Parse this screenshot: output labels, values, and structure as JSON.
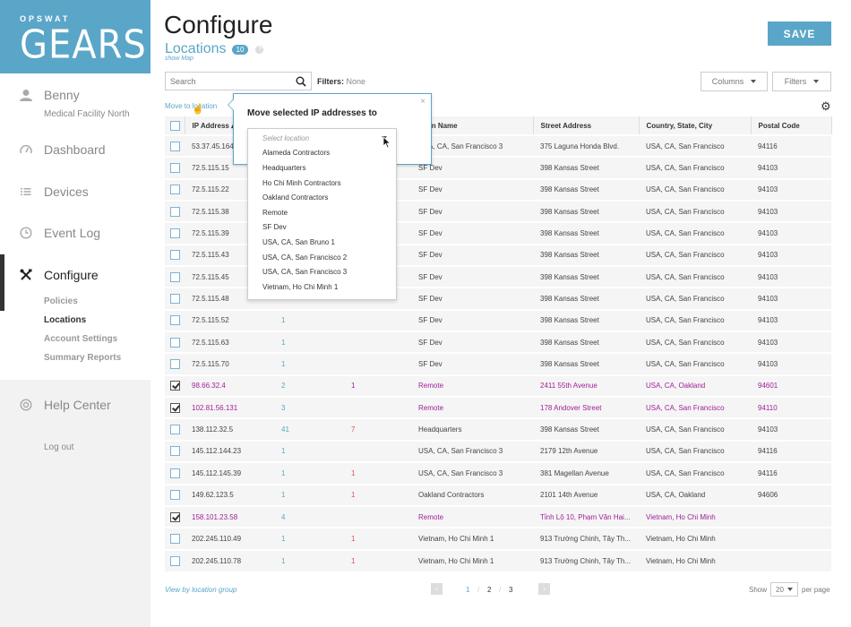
{
  "brand": {
    "top": "OPSWAT",
    "name": "GEARS"
  },
  "sidebar": {
    "user": {
      "name": "Benny",
      "org": "Medical Facility North"
    },
    "items": [
      {
        "label": "Dashboard"
      },
      {
        "label": "Devices"
      },
      {
        "label": "Event Log"
      },
      {
        "label": "Configure"
      },
      {
        "label": "Help Center"
      }
    ],
    "sub_items": [
      "Policies",
      "Locations",
      "Account Settings",
      "Summary Reports"
    ],
    "logout": "Log out"
  },
  "header": {
    "title": "Configure",
    "save_label": "SAVE"
  },
  "locations": {
    "title": "Locations",
    "count": "10",
    "help": "?",
    "show_map": "show Map"
  },
  "toolbar": {
    "search_placeholder": "Search",
    "filters_label": "Filters:",
    "filters_value": "None",
    "columns_btn": "Columns",
    "filters_btn": "Filters",
    "move_link": "Move to location"
  },
  "popover": {
    "title": "Move selected IP addresses to",
    "close": "×",
    "placeholder": "Select location",
    "options": [
      "Alameda Contractors",
      "Headquarters",
      "Ho Chi Minh Contractors",
      "Oakland Contractors",
      "Remote",
      "SF Dev",
      "USA, CA, San Bruno 1",
      "USA, CA, San Francisco 2",
      "USA, CA, San Francisco 3",
      "Vietnam, Ho Chi Minh 1"
    ]
  },
  "table": {
    "headers": [
      "IP Address",
      "",
      "",
      "Location Name",
      "Street Address",
      "Country, State, City",
      "Postal Code"
    ],
    "header_visible_name": "ation Name",
    "rows": [
      {
        "checked": false,
        "ip": "53.37.45.164",
        "c1": "",
        "c2": "",
        "loc": "USA, CA, San Francisco 3",
        "street": "375 Laguna Honda Blvd.",
        "city": "USA, CA, San Francisco",
        "zip": "94116"
      },
      {
        "checked": false,
        "ip": "72.5.115.15",
        "c1": "",
        "c2": "",
        "loc": "SF Dev",
        "street": "398 Kansas Street",
        "city": "USA, CA, San Francisco",
        "zip": "94103"
      },
      {
        "checked": false,
        "ip": "72.5.115.22",
        "c1": "",
        "c2": "",
        "loc": "SF Dev",
        "street": "398 Kansas Street",
        "city": "USA, CA, San Francisco",
        "zip": "94103"
      },
      {
        "checked": false,
        "ip": "72.5.115.38",
        "c1": "",
        "c2": "",
        "loc": "SF Dev",
        "street": "398 Kansas Street",
        "city": "USA, CA, San Francisco",
        "zip": "94103"
      },
      {
        "checked": false,
        "ip": "72.5.115.39",
        "c1": "",
        "c2": "",
        "loc": "SF Dev",
        "street": "398 Kansas Street",
        "city": "USA, CA, San Francisco",
        "zip": "94103"
      },
      {
        "checked": false,
        "ip": "72.5.115.43",
        "c1": "",
        "c2": "",
        "loc": "SF Dev",
        "street": "398 Kansas Street",
        "city": "USA, CA, San Francisco",
        "zip": "94103"
      },
      {
        "checked": false,
        "ip": "72.5.115.45",
        "c1": "",
        "c2": "",
        "loc": "SF Dev",
        "street": "398 Kansas Street",
        "city": "USA, CA, San Francisco",
        "zip": "94103"
      },
      {
        "checked": false,
        "ip": "72.5.115.48",
        "c1": "",
        "c2": "",
        "loc": "SF Dev",
        "street": "398 Kansas Street",
        "city": "USA, CA, San Francisco",
        "zip": "94103"
      },
      {
        "checked": false,
        "ip": "72.5.115.52",
        "c1": "1",
        "c2": "",
        "loc": "SF Dev",
        "street": "398 Kansas Street",
        "city": "USA, CA, San Francisco",
        "zip": "94103"
      },
      {
        "checked": false,
        "ip": "72.5.115.63",
        "c1": "1",
        "c2": "",
        "loc": "SF Dev",
        "street": "398 Kansas Street",
        "city": "USA, CA, San Francisco",
        "zip": "94103"
      },
      {
        "checked": false,
        "ip": "72.5.115.70",
        "c1": "1",
        "c2": "",
        "loc": "SF Dev",
        "street": "398 Kansas Street",
        "city": "USA, CA, San Francisco",
        "zip": "94103"
      },
      {
        "checked": true,
        "ip": "98.66.32.4",
        "c1": "2",
        "c2": "1",
        "loc": "Remote",
        "street": "2411 55th Avenue",
        "city": "USA, CA, Oakland",
        "zip": "94601"
      },
      {
        "checked": true,
        "ip": "102.81.56.131",
        "c1": "3",
        "c2": "",
        "loc": "Remote",
        "street": "178 Andover Street",
        "city": "USA, CA, San Francisco",
        "zip": "94110"
      },
      {
        "checked": false,
        "ip": "138.112.32.5",
        "c1": "41",
        "c2": "7",
        "loc": "Headquarters",
        "street": "398 Kansas Street",
        "city": "USA, CA, San Francisco",
        "zip": "94103"
      },
      {
        "checked": false,
        "ip": "145.112.144.23",
        "c1": "1",
        "c2": "",
        "loc": "USA, CA, San Francisco 3",
        "street": "2179 12th Avenue",
        "city": "USA, CA, San Francisco",
        "zip": "94116"
      },
      {
        "checked": false,
        "ip": "145.112.145.39",
        "c1": "1",
        "c2": "1",
        "loc": "USA, CA, San Francisco 3",
        "street": "381 Magellan Avenue",
        "city": "USA, CA, San Francisco",
        "zip": "94116"
      },
      {
        "checked": false,
        "ip": "149.62.123.5",
        "c1": "1",
        "c2": "1",
        "loc": "Oakland Contractors",
        "street": "2101 14th Avenue",
        "city": "USA, CA, Oakland",
        "zip": "94606"
      },
      {
        "checked": true,
        "ip": "158.101.23.58",
        "c1": "4",
        "c2": "",
        "loc": "Remote",
        "street": "Tỉnh Lộ 10, Phạm Văn Hai...",
        "city": "Vietnam, Ho Chi Minh",
        "zip": ""
      },
      {
        "checked": false,
        "ip": "202.245.110.49",
        "c1": "1",
        "c2": "1",
        "loc": "Vietnam, Ho Chi Minh 1",
        "street": "913 Trường Chinh, Tây Th...",
        "city": "Vietnam, Ho Chi Minh",
        "zip": ""
      },
      {
        "checked": false,
        "ip": "202.245.110.78",
        "c1": "1",
        "c2": "1",
        "loc": "Vietnam, Ho Chi Minh 1",
        "street": "913 Trường Chinh, Tây Th...",
        "city": "Vietnam, Ho Chi Minh",
        "zip": ""
      }
    ]
  },
  "footer": {
    "view_group": "View by location group",
    "pages": [
      "1",
      "2",
      "3"
    ],
    "current_page": "1",
    "prev": "‹",
    "next": "›",
    "show_label": "Show",
    "per_page_value": "20",
    "per_page_label": "per page"
  },
  "colors": {
    "accent": "#5aa6c8",
    "selected_text": "#a0209a",
    "count_red": "#d9534f"
  }
}
